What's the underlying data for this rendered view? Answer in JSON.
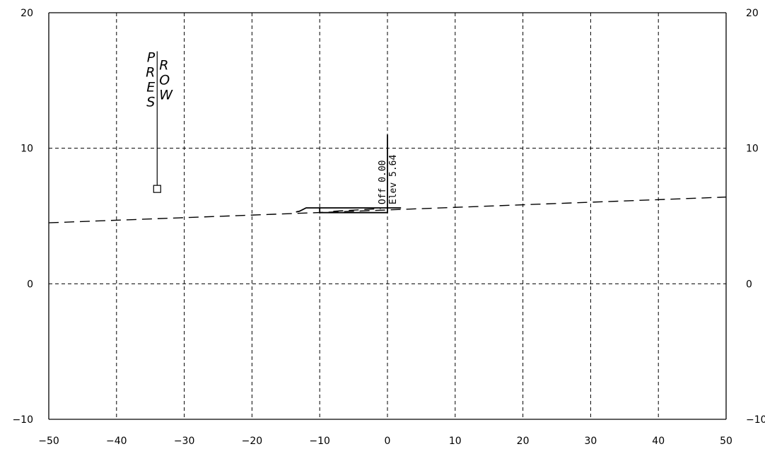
{
  "chart_data": {
    "type": "line",
    "title": "",
    "xlabel": "",
    "ylabel": "",
    "xlim": [
      -50,
      50
    ],
    "ylim": [
      -10,
      20
    ],
    "grid": true,
    "x_ticks": [
      -50,
      -40,
      -30,
      -20,
      -10,
      0,
      10,
      20,
      30,
      40,
      50
    ],
    "y_ticks": [
      -10,
      0,
      10,
      20
    ],
    "x_tick_labels": [
      "−50",
      "−40",
      "−30",
      "−20",
      "−10",
      "0",
      "10",
      "20",
      "30",
      "40",
      "50"
    ],
    "y_tick_labels": [
      "−10",
      "0",
      "10",
      "20"
    ],
    "right_y_tick_labels": [
      "−10",
      "0",
      "10",
      "20"
    ],
    "series": [
      {
        "style": "dashed",
        "points": [
          [
            -50,
            4.5
          ],
          [
            50,
            6.4
          ]
        ]
      },
      {
        "style": "solid",
        "points": [
          [
            -13.5,
            5.3
          ],
          [
            -13.0,
            5.35
          ],
          [
            -12.0,
            5.6
          ],
          [
            0,
            5.6
          ],
          [
            2.0,
            5.6
          ]
        ]
      },
      {
        "style": "solid",
        "points": [
          [
            -10,
            5.6
          ],
          [
            -10,
            5.25
          ],
          [
            0,
            5.25
          ],
          [
            0,
            11
          ]
        ]
      },
      {
        "style": "dashed",
        "points": [
          [
            -8,
            5.35
          ],
          [
            -1,
            5.55
          ]
        ]
      }
    ],
    "annotations": {
      "row_marker": {
        "x": -34,
        "y_top": 17,
        "y_bottom": 7,
        "left_letters": [
          "P",
          "R",
          "E",
          "S"
        ],
        "right_letters": [
          "R",
          "O",
          "W"
        ]
      },
      "offset_label": "Off 0.00",
      "elevation_label": "Elev 5.64"
    }
  }
}
